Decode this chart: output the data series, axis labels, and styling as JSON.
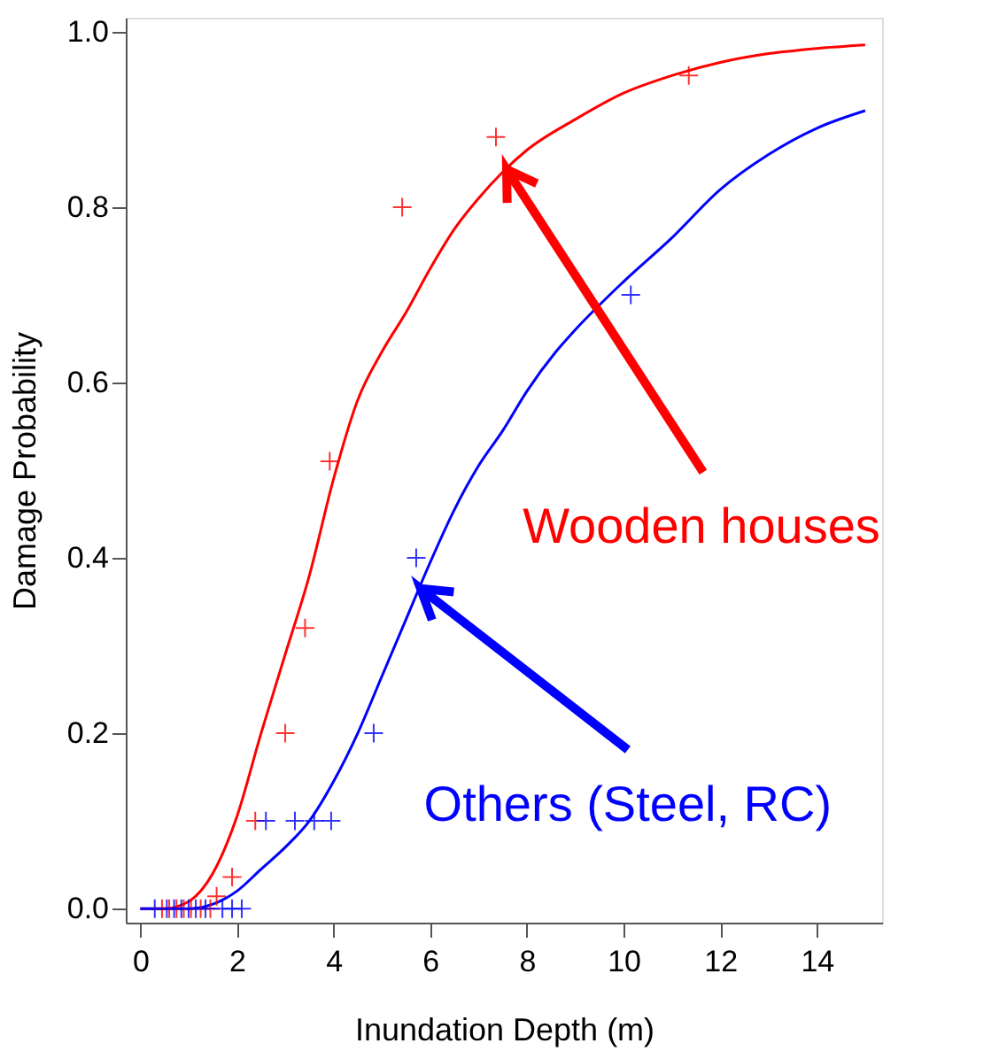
{
  "chart_data": {
    "type": "scatter",
    "xlabel": "Inundation Depth (m)",
    "ylabel": "Damage Probability",
    "xlim": [
      -0.3,
      15.35
    ],
    "ylim": [
      -0.016,
      1.016
    ],
    "xticks": [
      0,
      2,
      4,
      6,
      8,
      10,
      12,
      14
    ],
    "yticks": [
      {
        "value": 0,
        "label": "0.0"
      },
      {
        "value": 0.2,
        "label": "0.2"
      },
      {
        "value": 0.4,
        "label": "0.4"
      },
      {
        "value": 0.6,
        "label": "0.6"
      },
      {
        "value": 0.8,
        "label": "0.8"
      },
      {
        "value": 1,
        "label": "1.0"
      }
    ],
    "grid": false,
    "series": [
      {
        "type": "line",
        "color": "#ff0000",
        "marker": "none",
        "line_style": "solid",
        "x": [
          0,
          0.5,
          1,
          1.5,
          2,
          2.5,
          3,
          3.5,
          4,
          4.5,
          5,
          5.5,
          6,
          6.5,
          7,
          7.5,
          8,
          9,
          10,
          11,
          12,
          13,
          14,
          15
        ],
        "values": [
          0,
          0,
          0.008,
          0.04,
          0.105,
          0.2,
          0.29,
          0.38,
          0.49,
          0.58,
          0.635,
          0.68,
          0.73,
          0.775,
          0.81,
          0.84,
          0.865,
          0.9,
          0.93,
          0.95,
          0.965,
          0.975,
          0.981,
          0.985
        ]
      },
      {
        "type": "line",
        "color": "#0000ff",
        "marker": "none",
        "line_style": "solid",
        "x": [
          0,
          1,
          1.5,
          2,
          2.5,
          3,
          3.5,
          4,
          4.5,
          5,
          5.5,
          6,
          6.5,
          7,
          7.5,
          8,
          8.6,
          9,
          10,
          11,
          12,
          13,
          14,
          15
        ],
        "values": [
          0,
          0,
          0.005,
          0.02,
          0.045,
          0.07,
          0.1,
          0.145,
          0.2,
          0.265,
          0.33,
          0.395,
          0.455,
          0.505,
          0.545,
          0.59,
          0.635,
          0.66,
          0.715,
          0.765,
          0.82,
          0.86,
          0.89,
          0.91
        ]
      },
      {
        "color": "#ff0000",
        "marker": "cross",
        "x": [
          0.45,
          0.6,
          0.75,
          0.9,
          1.05,
          1.25,
          1.45,
          1.58,
          1.9,
          2.38,
          3.0,
          3.41,
          3.92,
          5.42,
          7.36,
          11.35
        ],
        "values": [
          0,
          0,
          0,
          0,
          0,
          0,
          0,
          0.014,
          0.036,
          0.1,
          0.2,
          0.32,
          0.51,
          0.8,
          0.88,
          0.95
        ]
      },
      {
        "color": "#0000ff",
        "marker": "cross",
        "x": [
          0.3,
          0.55,
          0.7,
          0.85,
          1.0,
          1.15,
          1.35,
          1.7,
          1.9,
          2.1,
          2.6,
          3.2,
          3.6,
          3.95,
          4.83,
          5.71,
          10.15
        ],
        "values": [
          0,
          0,
          0,
          0,
          0,
          0,
          0,
          0,
          0,
          0,
          0.1,
          0.1,
          0.1,
          0.1,
          0.2,
          0.4,
          0.7
        ]
      }
    ],
    "annotations": [
      {
        "text": "Wooden houses",
        "x": 7.58,
        "y": 0.843
      },
      {
        "text": "Others (Steel, RC)",
        "x": 5.8,
        "y": 0.365
      }
    ]
  }
}
